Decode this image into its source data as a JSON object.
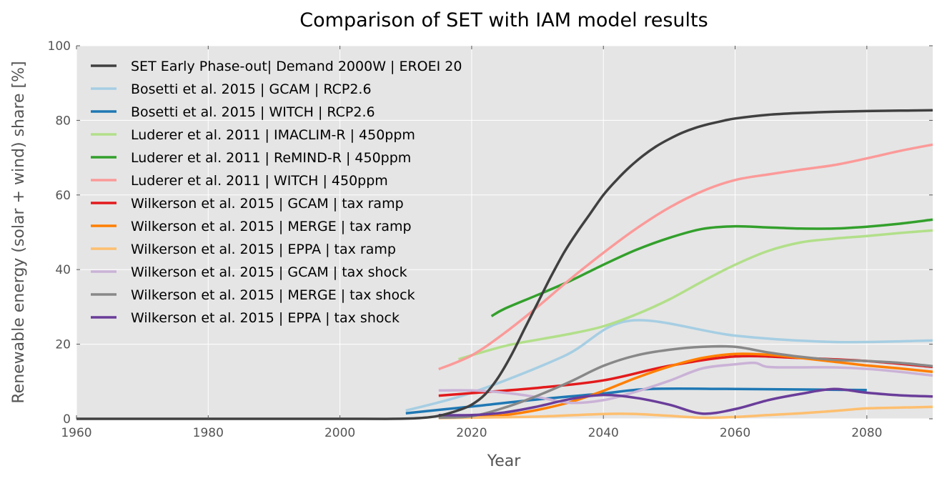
{
  "chart_data": {
    "type": "line",
    "title": "Comparison of SET with IAM model results",
    "xlabel": "Year",
    "ylabel": "Renewable energy (solar + wind) share [%]",
    "xlim": [
      1960,
      2090
    ],
    "ylim": [
      0,
      100
    ],
    "xticks": [
      1960,
      1980,
      2000,
      2020,
      2040,
      2060,
      2080
    ],
    "yticks": [
      0,
      20,
      40,
      60,
      80,
      100
    ],
    "grid": true,
    "background": "#e5e5e5",
    "legend_position": "top-left",
    "series": [
      {
        "name": "SET Early Phase-out| Demand 2000W | EROEI 20",
        "color": "#404040",
        "x": [
          1960,
          2000,
          2008,
          2012,
          2015,
          2018,
          2020,
          2022,
          2024,
          2026,
          2028,
          2030,
          2032,
          2034,
          2036,
          2038,
          2040,
          2042,
          2044,
          2046,
          2048,
          2050,
          2052,
          2054,
          2056,
          2058,
          2060,
          2065,
          2070,
          2075,
          2080,
          2085,
          2090
        ],
        "y": [
          0,
          0,
          0,
          0.2,
          0.8,
          2.3,
          3.8,
          6.5,
          11,
          17,
          24,
          31,
          38,
          44.5,
          50,
          55,
          60,
          64,
          67.5,
          70.5,
          73,
          75,
          76.7,
          78,
          79,
          79.8,
          80.5,
          81.5,
          82,
          82.3,
          82.5,
          82.6,
          82.7
        ]
      },
      {
        "name": "Bosetti et al. 2015 | GCAM | RCP2.6",
        "color": "#a6cee3",
        "x": [
          2010,
          2020,
          2034,
          2044,
          2060,
          2075,
          2090
        ],
        "y": [
          2.2,
          7,
          16.8,
          26.3,
          22.3,
          20.6,
          21
        ]
      },
      {
        "name": "Bosetti et al. 2015 | WITCH | RCP2.6",
        "color": "#1f78b4",
        "x": [
          2010,
          2020,
          2030,
          2040,
          2047,
          2060,
          2080
        ],
        "y": [
          1.5,
          3.3,
          5.2,
          6.8,
          8,
          8,
          7.7
        ]
      },
      {
        "name": "Luderer et al. 2011 | IMACLIM-R | 450ppm",
        "color": "#b2df8a",
        "x": [
          2018,
          2025,
          2030,
          2035,
          2040,
          2045,
          2050,
          2055,
          2060,
          2065,
          2070,
          2075,
          2080,
          2085,
          2090
        ],
        "y": [
          16,
          19.5,
          21.2,
          22.8,
          24.8,
          28,
          32,
          36.8,
          41.3,
          45,
          47.3,
          48.3,
          49,
          49.8,
          50.5
        ]
      },
      {
        "name": "Luderer et al. 2011 | ReMIND-R | 450ppm",
        "color": "#33a02c",
        "x": [
          2023,
          2025,
          2030,
          2035,
          2040,
          2045,
          2050,
          2055,
          2060,
          2065,
          2070,
          2075,
          2080,
          2085,
          2090
        ],
        "y": [
          27.5,
          29.5,
          33.2,
          37,
          41.3,
          45.3,
          48.5,
          50.9,
          51.6,
          51.3,
          51,
          51,
          51.5,
          52.3,
          53.4
        ]
      },
      {
        "name": "Luderer et al. 2011 | WITCH | 450ppm",
        "color": "#fb9a99",
        "x": [
          2015,
          2020,
          2025,
          2030,
          2035,
          2040,
          2045,
          2050,
          2055,
          2060,
          2065,
          2070,
          2075,
          2080,
          2085,
          2090
        ],
        "y": [
          13.3,
          17,
          23,
          30,
          37.5,
          44.5,
          51,
          56.6,
          61,
          64,
          65.5,
          66.8,
          68,
          69.8,
          71.8,
          73.5
        ]
      },
      {
        "name": "Wilkerson et al. 2015 | GCAM | tax ramp",
        "color": "#e31a1c",
        "x": [
          2015,
          2020,
          2030,
          2040,
          2050,
          2060,
          2070,
          2080,
          2090
        ],
        "y": [
          6.2,
          6.9,
          8.3,
          10.3,
          14.2,
          16.7,
          16.3,
          15.5,
          13.9
        ]
      },
      {
        "name": "Wilkerson et al. 2015 | MERGE | tax ramp",
        "color": "#ff7f00",
        "x": [
          2015,
          2020,
          2025,
          2030,
          2035,
          2040,
          2045,
          2050,
          2055,
          2060,
          2065,
          2070,
          2075,
          2080,
          2085,
          2090
        ],
        "y": [
          0.3,
          0.5,
          1,
          2.4,
          4.5,
          7.5,
          11,
          14,
          16.3,
          17.4,
          17.2,
          16.3,
          15.3,
          14.3,
          13.5,
          12.6
        ]
      },
      {
        "name": "Wilkerson et al. 2015 | EPPA | tax ramp",
        "color": "#fdbf6f",
        "x": [
          2015,
          2020,
          2030,
          2040,
          2045,
          2050,
          2055,
          2060,
          2065,
          2070,
          2075,
          2080,
          2085,
          2090
        ],
        "y": [
          0.2,
          0.3,
          0.6,
          1.3,
          1.3,
          0.8,
          0.3,
          0.5,
          1,
          1.5,
          2.1,
          2.8,
          3,
          3.2
        ]
      },
      {
        "name": "Wilkerson et al. 2015 | GCAM | tax shock",
        "color": "#cab2d6",
        "x": [
          2015,
          2020,
          2025,
          2030,
          2035,
          2040,
          2045,
          2050,
          2055,
          2060,
          2063,
          2065,
          2070,
          2075,
          2080,
          2085,
          2090
        ],
        "y": [
          7.6,
          7.6,
          7,
          5.8,
          4.3,
          5,
          7.3,
          10.2,
          13.5,
          14.6,
          15,
          13.9,
          13.8,
          13.8,
          13.4,
          12.6,
          11.6
        ]
      },
      {
        "name": "Wilkerson et al. 2015 | MERGE | tax shock",
        "color": "#888888",
        "x": [
          2015,
          2020,
          2025,
          2030,
          2035,
          2040,
          2045,
          2050,
          2055,
          2060,
          2065,
          2070,
          2075,
          2080,
          2085,
          2090
        ],
        "y": [
          0.3,
          0.7,
          3,
          6.2,
          10,
          14.2,
          17,
          18.5,
          19.3,
          19.3,
          17.8,
          16.6,
          15.8,
          15.5,
          15,
          14.1
        ]
      },
      {
        "name": "Wilkerson et al. 2015 | EPPA | tax shock",
        "color": "#6a3d9a",
        "x": [
          2015,
          2020,
          2025,
          2030,
          2035,
          2040,
          2045,
          2050,
          2055,
          2060,
          2065,
          2070,
          2075,
          2080,
          2085,
          2090
        ],
        "y": [
          1,
          1,
          1.7,
          3.3,
          5.3,
          6.4,
          5.6,
          3.8,
          1.4,
          2.6,
          5,
          6.7,
          8,
          7,
          6.3,
          6
        ]
      }
    ]
  }
}
